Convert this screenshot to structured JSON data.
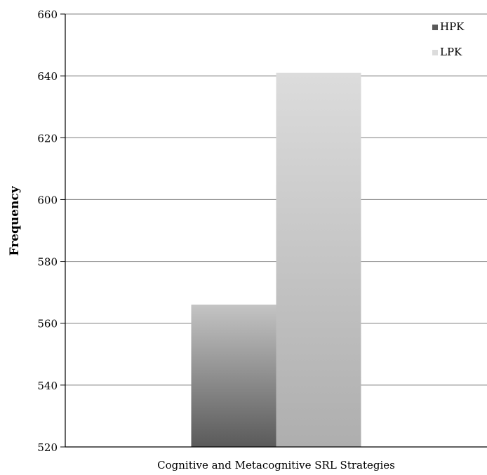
{
  "chart_data": {
    "type": "bar",
    "categories": [
      "Cognitive and Metacognitive SRL Strategies"
    ],
    "series": [
      {
        "name": "HPK",
        "values": [
          566
        ],
        "color_top": "#c4c4c4",
        "color_bottom": "#5a5a5a"
      },
      {
        "name": "LPK",
        "values": [
          641
        ],
        "color_top": "#dcdcdc",
        "color_bottom": "#aeaeae"
      }
    ],
    "ylabel": "Frequency",
    "xlabel": "",
    "ylim": [
      520,
      660
    ],
    "yticks": [
      520,
      540,
      560,
      580,
      600,
      620,
      640,
      660
    ],
    "grid": true,
    "legend": "top-right"
  }
}
